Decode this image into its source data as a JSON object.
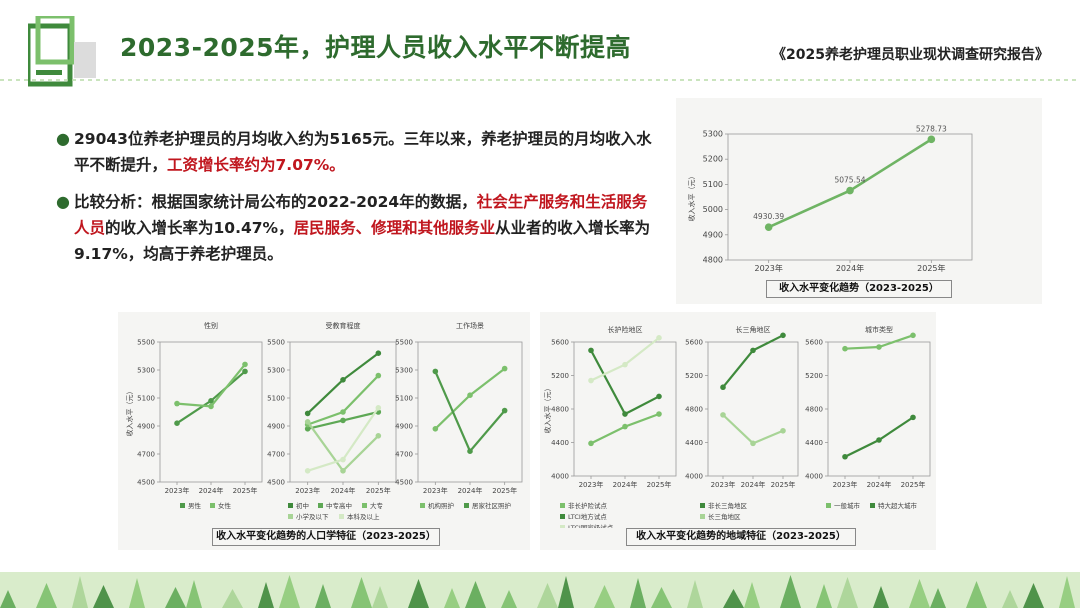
{
  "header": {
    "title": "2023-2025年，护理人员收入水平不断提高",
    "report": "《2025养老护理员职业现状调查研究报告》"
  },
  "bullets": {
    "b1": {
      "p1": "29043位养老护理员的月均收入约为5165元。三年以来，养老护理员的月均收入水平不断提升，",
      "p2": "工资增长率约为7.07%。"
    },
    "b2": {
      "p1": "比较分析：根据国家统计局公布的2022-2024年的数据，",
      "p2": "社会生产服务和生活服务人员",
      "p3": "的收入增长率为10.47%，",
      "p4": "居民服务、修理和其他服务业",
      "p5": "从业者的收入增长率为9.17%，均高于养老护理员。"
    }
  },
  "colors": {
    "dark": "#4f9a4a",
    "mid": "#6fb464",
    "light": "#a8d496",
    "pale": "#d4e9c5",
    "red": "#c0161e",
    "title": "#2e6b2e"
  },
  "chart_data": [
    {
      "id": "trend",
      "type": "line",
      "caption": "收入水平变化趋势（2023-2025）",
      "ylabel": "收入水平（元）",
      "x": [
        "2023年",
        "2024年",
        "2025年"
      ],
      "ylim": [
        4800,
        5300
      ],
      "yticks": [
        4800,
        4900,
        5000,
        5100,
        5200,
        5300
      ],
      "series": [
        {
          "values": [
            4930.39,
            5075.54,
            5278.73
          ],
          "labels": [
            "4930.39",
            "5075.54",
            "5278.73"
          ],
          "color": "#6fb464"
        }
      ]
    },
    {
      "id": "gender",
      "type": "line",
      "title": "性别",
      "ylabel": "收入水平（元）",
      "x": [
        "2023年",
        "2024年",
        "2025年"
      ],
      "ylim": [
        4500,
        5500
      ],
      "yticks": [
        4500,
        4700,
        4900,
        5100,
        5300,
        5500
      ],
      "series": [
        {
          "name": "男性",
          "values": [
            4920,
            5080,
            5290
          ],
          "color": "#4f9a4a"
        },
        {
          "name": "女性",
          "values": [
            5060,
            5040,
            5340
          ],
          "color": "#7cc06c"
        }
      ]
    },
    {
      "id": "education",
      "type": "line",
      "title": "受教育程度",
      "x": [
        "2023年",
        "2024年",
        "2025年"
      ],
      "ylim": [
        4500,
        5500
      ],
      "yticks": [
        4500,
        4700,
        4900,
        5100,
        5300,
        5500
      ],
      "series": [
        {
          "name": "初中",
          "values": [
            4990,
            5230,
            5420
          ],
          "color": "#3f8a3c"
        },
        {
          "name": "中专高中",
          "values": [
            4880,
            4940,
            5000
          ],
          "color": "#5ea855"
        },
        {
          "name": "大专",
          "values": [
            4910,
            5000,
            5260
          ],
          "color": "#7cc06c"
        },
        {
          "name": "小学及以下",
          "values": [
            4930,
            4580,
            4830
          ],
          "color": "#a8d496"
        },
        {
          "name": "本科及以上",
          "values": [
            4580,
            4660,
            5030
          ],
          "color": "#d4e9c5"
        }
      ]
    },
    {
      "id": "scene",
      "type": "line",
      "title": "工作场景",
      "x": [
        "2023年",
        "2024年",
        "2025年"
      ],
      "ylim": [
        4500,
        5500
      ],
      "yticks": [
        4500,
        4700,
        4900,
        5100,
        5300,
        5500
      ],
      "series": [
        {
          "name": "机构照护",
          "values": [
            4880,
            5120,
            5310
          ],
          "color": "#7cc06c"
        },
        {
          "name": "居家社区照护",
          "values": [
            5290,
            4720,
            5010
          ],
          "color": "#4f9a4a"
        }
      ]
    },
    {
      "id": "ltc",
      "type": "line",
      "title": "长护险地区",
      "ylabel": "收入水平（元）",
      "x": [
        "2023年",
        "2024年",
        "2025年"
      ],
      "ylim": [
        4000,
        5600
      ],
      "yticks": [
        4000,
        4400,
        4800,
        5200,
        5600
      ],
      "series": [
        {
          "name": "非长护险试点",
          "values": [
            4390,
            4590,
            4740
          ],
          "color": "#7cc06c"
        },
        {
          "name": "LTCI地方试点",
          "values": [
            5500,
            4740,
            4950
          ],
          "color": "#3f8a3c"
        },
        {
          "name": "LTCI国家级试点",
          "values": [
            5140,
            5330,
            5650
          ],
          "color": "#d4e9c5"
        }
      ]
    },
    {
      "id": "yrd",
      "type": "line",
      "title": "长三角地区",
      "x": [
        "2023年",
        "2024年",
        "2025年"
      ],
      "ylim": [
        4000,
        5600
      ],
      "yticks": [
        4000,
        4400,
        4800,
        5200,
        5600
      ],
      "series": [
        {
          "name": "非长三角地区",
          "values": [
            5060,
            5500,
            5680
          ],
          "color": "#3f8a3c"
        },
        {
          "name": "长三角地区",
          "values": [
            4730,
            4390,
            4540
          ],
          "color": "#a8d496"
        }
      ]
    },
    {
      "id": "city",
      "type": "line",
      "title": "城市类型",
      "x": [
        "2023年",
        "2024年",
        "2025年"
      ],
      "ylim": [
        4000,
        5600
      ],
      "yticks": [
        4000,
        4400,
        4800,
        5200,
        5600
      ],
      "series": [
        {
          "name": "一般城市",
          "values": [
            5520,
            5540,
            5680
          ],
          "color": "#7cc06c"
        },
        {
          "name": "特大超大城市",
          "values": [
            4230,
            4430,
            4700
          ],
          "color": "#3f8a3c"
        }
      ]
    }
  ],
  "captions": {
    "demographic": "收入水平变化趋势的人口学特征（2023-2025）",
    "regional": "收入水平变化趋势的地域特征（2023-2025）"
  }
}
